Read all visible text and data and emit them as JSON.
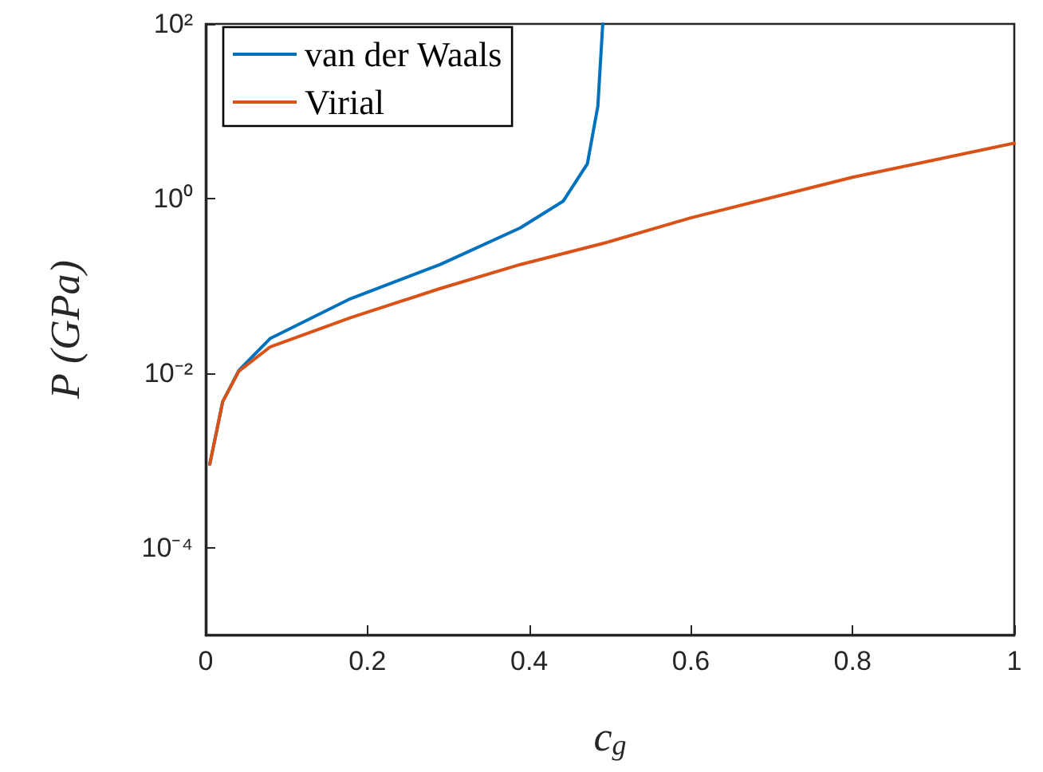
{
  "chart_data": {
    "type": "line",
    "xlabel": "c$_{g}$",
    "ylabel": "P (GPa)",
    "log": "y",
    "legend": "top left",
    "grid": false,
    "marker": "none",
    "line_style": "solid",
    "xlim": [
      0,
      1
    ],
    "xticks": [
      0,
      0.2,
      0.4,
      0.6,
      0.8,
      1
    ],
    "ylim": [
      1e-05,
      100
    ],
    "yticks": [
      {
        "value": 0.0001,
        "label": "10⁻⁴"
      },
      {
        "value": 0.01,
        "label": "10⁻²"
      },
      {
        "value": 1,
        "label": "10⁰"
      },
      {
        "value": 100,
        "label": "10²"
      }
    ],
    "series": [
      {
        "name": "van der Waals",
        "color": "#0072bd",
        "x": [
          0.005,
          0.021,
          0.041,
          0.08,
          0.179,
          0.29,
          0.389,
          0.442,
          0.472,
          0.485,
          0.491
        ],
        "values": [
          0.0009,
          0.0047,
          0.0107,
          0.025,
          0.071,
          0.175,
          0.46,
          0.93,
          2.5,
          11.5,
          100
        ]
      },
      {
        "name": "Virial",
        "color": "#d95319",
        "x": [
          0.005,
          0.021,
          0.041,
          0.08,
          0.179,
          0.29,
          0.389,
          0.494,
          0.6,
          0.8,
          1
        ],
        "values": [
          0.0009,
          0.0047,
          0.0105,
          0.02,
          0.043,
          0.093,
          0.175,
          0.31,
          0.6,
          1.75,
          4.3
        ]
      }
    ]
  }
}
